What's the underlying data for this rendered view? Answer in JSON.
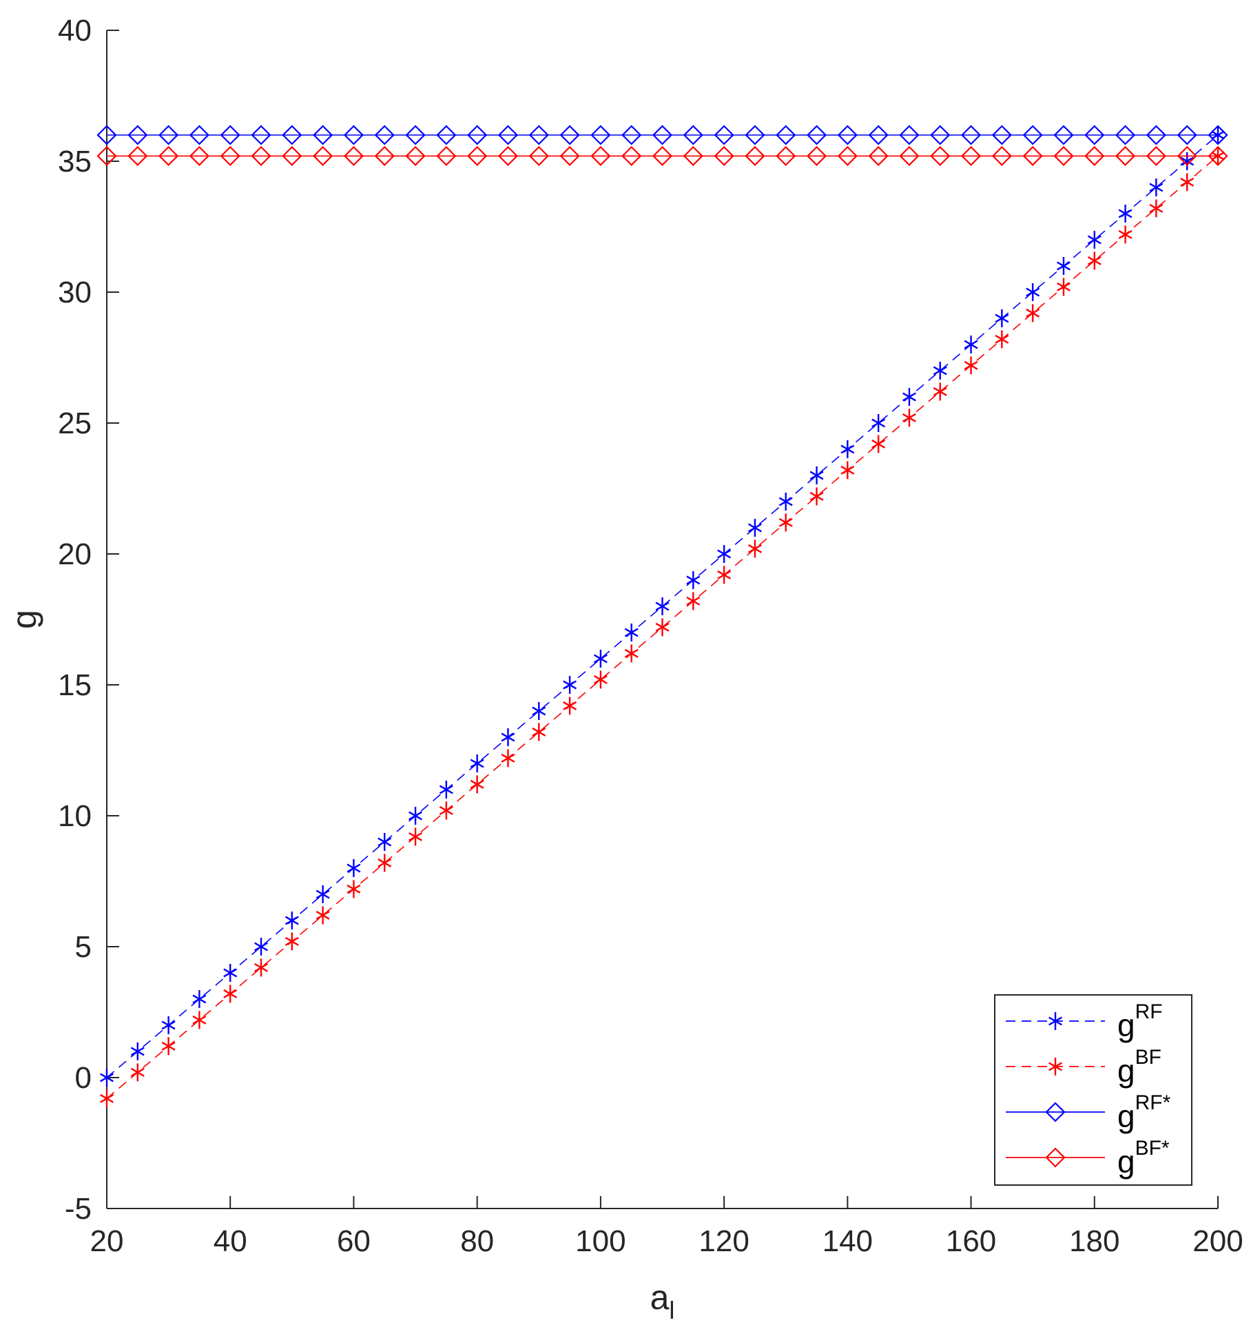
{
  "chart_data": {
    "type": "line",
    "xlabel": "a",
    "xlabel_subscript": "l",
    "ylabel": "g",
    "xlim": [
      20,
      200
    ],
    "ylim": [
      -5,
      40
    ],
    "xticks": [
      20,
      40,
      60,
      80,
      100,
      120,
      140,
      160,
      180,
      200
    ],
    "yticks": [
      -5,
      0,
      5,
      10,
      15,
      20,
      25,
      30,
      35,
      40
    ],
    "grid": false,
    "legend_position": "bottom-right",
    "x": [
      20,
      25,
      30,
      35,
      40,
      45,
      50,
      55,
      60,
      65,
      70,
      75,
      80,
      85,
      90,
      95,
      100,
      105,
      110,
      115,
      120,
      125,
      130,
      135,
      140,
      145,
      150,
      155,
      160,
      165,
      170,
      175,
      180,
      185,
      190,
      195,
      200
    ],
    "series": [
      {
        "name": "g",
        "name_sup": "RF",
        "color": "#0000ff",
        "line_style": "dashed",
        "marker": "asterisk",
        "values": [
          0,
          1,
          2,
          3,
          4,
          5,
          6,
          7,
          8,
          9,
          10,
          11,
          12,
          13,
          14,
          15,
          16,
          17,
          18,
          19,
          20,
          21,
          22,
          23,
          24,
          25,
          26,
          27,
          28,
          29,
          30,
          31,
          32,
          33,
          34,
          35,
          36
        ]
      },
      {
        "name": "g",
        "name_sup": "BF",
        "color": "#ff0000",
        "line_style": "dashed",
        "marker": "asterisk",
        "values": [
          -0.8,
          0.2,
          1.2,
          2.2,
          3.2,
          4.2,
          5.2,
          6.2,
          7.2,
          8.2,
          9.2,
          10.2,
          11.2,
          12.2,
          13.2,
          14.2,
          15.2,
          16.2,
          17.2,
          18.2,
          19.2,
          20.2,
          21.2,
          22.2,
          23.2,
          24.2,
          25.2,
          26.2,
          27.2,
          28.2,
          29.2,
          30.2,
          31.2,
          32.2,
          33.2,
          34.2,
          35.2
        ]
      },
      {
        "name": "g",
        "name_sup": "RF*",
        "color": "#0000ff",
        "line_style": "solid",
        "marker": "diamond",
        "values": [
          36,
          36,
          36,
          36,
          36,
          36,
          36,
          36,
          36,
          36,
          36,
          36,
          36,
          36,
          36,
          36,
          36,
          36,
          36,
          36,
          36,
          36,
          36,
          36,
          36,
          36,
          36,
          36,
          36,
          36,
          36,
          36,
          36,
          36,
          36,
          36,
          36
        ]
      },
      {
        "name": "g",
        "name_sup": "BF*",
        "color": "#ff0000",
        "line_style": "solid",
        "marker": "diamond",
        "values": [
          35.2,
          35.2,
          35.2,
          35.2,
          35.2,
          35.2,
          35.2,
          35.2,
          35.2,
          35.2,
          35.2,
          35.2,
          35.2,
          35.2,
          35.2,
          35.2,
          35.2,
          35.2,
          35.2,
          35.2,
          35.2,
          35.2,
          35.2,
          35.2,
          35.2,
          35.2,
          35.2,
          35.2,
          35.2,
          35.2,
          35.2,
          35.2,
          35.2,
          35.2,
          35.2,
          35.2,
          35.2
        ]
      }
    ]
  }
}
